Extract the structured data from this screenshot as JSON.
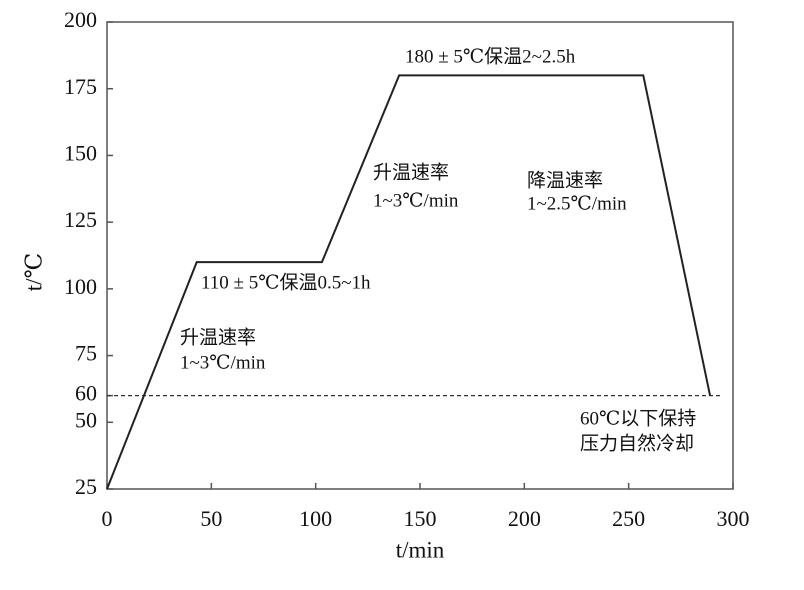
{
  "chart_data": {
    "type": "line",
    "x_label": "t/min",
    "y_label": "t/℃",
    "x": [
      0,
      43,
      103,
      140,
      257,
      289
    ],
    "series": [
      {
        "color": "#222222",
        "values": [
          25,
          110,
          110,
          180,
          180,
          60
        ]
      }
    ],
    "xlim": [
      0,
      300
    ],
    "xticks": [
      0,
      50,
      100,
      150,
      200,
      250,
      300
    ],
    "ylim": [
      25,
      200
    ],
    "yticks": [
      25,
      50,
      60,
      75,
      100,
      125,
      150,
      175,
      200
    ],
    "hline": 60,
    "annotations": [
      [
        "180 ± 5℃保温2~2.5h"
      ],
      [
        "升温速率",
        "1~3℃/min"
      ],
      [
        "降温速率",
        "1~2.5℃/min"
      ],
      [
        "110 ± 5℃保温0.5~1h"
      ],
      [
        "升温速率",
        "1~3℃/min"
      ],
      [
        "60℃以下保持",
        "压力自然冷却"
      ]
    ]
  }
}
